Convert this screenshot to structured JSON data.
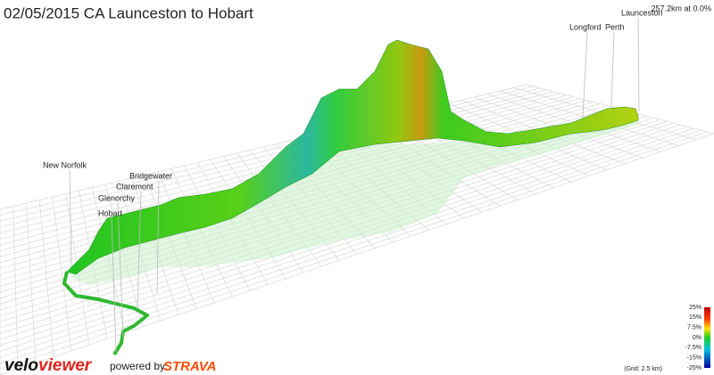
{
  "title": "02/05/2015 CA Launceston to Hobart",
  "position": "257.2km at 0.0%",
  "places": [
    {
      "label": "Launceston"
    },
    {
      "label": "Perth"
    },
    {
      "label": "Longford"
    },
    {
      "label": "Bridgewater"
    },
    {
      "label": "Claremont"
    },
    {
      "label": "Glenorchy"
    },
    {
      "label": "Hobart"
    },
    {
      "label": "New Norfolk"
    }
  ],
  "legend": {
    "labels": [
      "25%",
      "15%",
      "7.5%",
      "0%",
      "-7.5%",
      "-15%",
      "-25%"
    ],
    "grid_note": "(Grid: 2.5 km)"
  },
  "branding": {
    "velo": "velo",
    "viewer": "viewer",
    "powered": "powered by",
    "strava": "STRAVA"
  }
}
